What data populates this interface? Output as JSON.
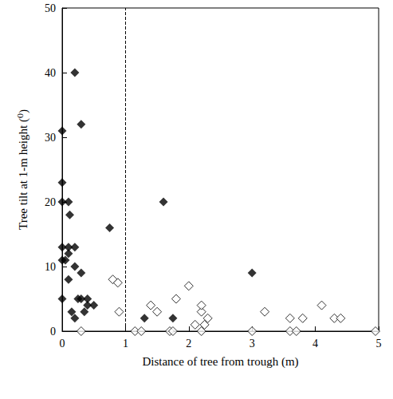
{
  "chart_data": {
    "type": "scatter",
    "x_label": "Distance of tree from trough (m)",
    "y_label": "Tree tilt at 1-m height (⁰)",
    "xlim": [
      0,
      5
    ],
    "xticks": [
      0,
      1,
      2,
      3,
      4,
      5
    ],
    "ylim": [
      0,
      50
    ],
    "yticks": [
      0,
      10,
      20,
      30,
      40,
      50
    ],
    "grid": false,
    "reference_lines": [
      {
        "x": 1,
        "line_style": "dashed"
      }
    ],
    "series": [
      {
        "color": "#000000",
        "marker": "diamond",
        "x": [
          0.2,
          0,
          0.3,
          0,
          0,
          0.1,
          0.12,
          0,
          0.1,
          0.2,
          0.1,
          0.05,
          0,
          0.2,
          0.3,
          0.1,
          0,
          0.25,
          0.3,
          0.4,
          0.35,
          0.5,
          0.4,
          0.15,
          0.2,
          0.75,
          1.6,
          1.3,
          1.75,
          3
        ],
        "values": [
          40,
          31,
          32,
          23,
          20,
          20,
          18,
          13,
          13,
          13,
          12,
          11,
          11,
          10,
          9,
          8,
          5,
          5,
          5,
          5,
          3,
          4,
          4,
          3,
          2,
          16,
          20,
          2,
          2,
          9
        ]
      },
      {
        "color": "#000000",
        "marker": "open_diamond",
        "x": [
          0.3,
          0.8,
          0.88,
          0.9,
          1.15,
          1.25,
          1.4,
          1.5,
          1.7,
          1.75,
          1.8,
          2.0,
          2.1,
          2.2,
          2.2,
          2.2,
          2.25,
          2.3,
          3.0,
          3.2,
          3.6,
          3.6,
          3.7,
          3.8,
          4.1,
          4.3,
          4.4,
          4.95
        ],
        "values": [
          0,
          8,
          7.5,
          3,
          0,
          0,
          4,
          3,
          0,
          0,
          5,
          7,
          1,
          3,
          4,
          0,
          1,
          2,
          0,
          3,
          0,
          2,
          0,
          2,
          4,
          2,
          2,
          0
        ]
      }
    ]
  }
}
